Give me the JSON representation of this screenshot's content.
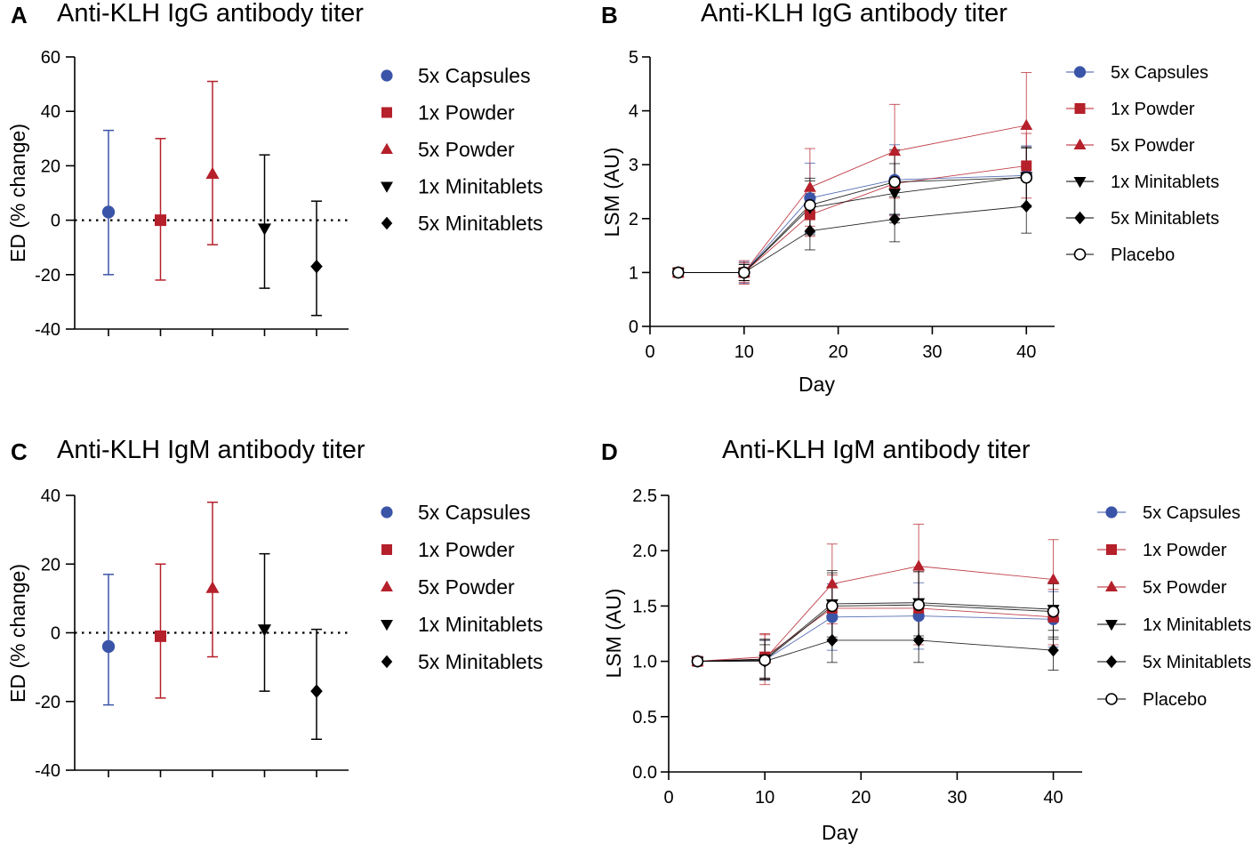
{
  "panels": {
    "A": {
      "letter": "A",
      "title": "Anti-KLH IgG antibody titer"
    },
    "B": {
      "letter": "B",
      "title": "Anti-KLH IgG antibody titer"
    },
    "C": {
      "letter": "C",
      "title": "Anti-KLH IgM antibody titer"
    },
    "D": {
      "letter": "D",
      "title": "Anti-KLH IgM antibody titer"
    }
  },
  "colors": {
    "blue": "#3a55a8",
    "red": "#b5202a",
    "black": "#000000",
    "grid": "#000000"
  },
  "chart_data": [
    {
      "id": "A",
      "type": "scatter",
      "title": "Anti-KLH IgG antibody titer",
      "ylabel": "ED (% change)",
      "xlabel": "",
      "ylim": [
        -40,
        60
      ],
      "yticks": [
        60,
        40,
        20,
        0,
        -20,
        -40
      ],
      "reference_line": 0,
      "series": [
        {
          "name": "5x Capsules",
          "marker": "circle",
          "color": "#3a55a8",
          "value": 3,
          "low": -20,
          "high": 33
        },
        {
          "name": "1x Powder",
          "marker": "square",
          "color": "#b5202a",
          "value": 0,
          "low": -22,
          "high": 30
        },
        {
          "name": "5x Powder",
          "marker": "triangle-up",
          "color": "#b5202a",
          "value": 17,
          "low": -9,
          "high": 51
        },
        {
          "name": "1x Minitablets",
          "marker": "triangle-down",
          "color": "#000000",
          "value": -3,
          "low": -25,
          "high": 24
        },
        {
          "name": "5x Minitablets",
          "marker": "diamond",
          "color": "#000000",
          "value": -17,
          "low": -35,
          "high": 7
        }
      ]
    },
    {
      "id": "B",
      "type": "line",
      "title": "Anti-KLH IgG antibody titer",
      "xlabel": "Day",
      "ylabel": "LSM (AU)",
      "xlim": [
        0,
        42
      ],
      "ylim": [
        0,
        5
      ],
      "xticks": [
        0,
        10,
        20,
        30,
        40
      ],
      "yticks": [
        0,
        1,
        2,
        3,
        4,
        5
      ],
      "x": [
        3,
        10,
        17,
        26,
        40
      ],
      "series": [
        {
          "name": "5x Capsules",
          "marker": "circle",
          "color": "#3a55a8",
          "values": [
            1,
            1,
            2.38,
            2.72,
            2.8
          ],
          "errors": [
            0.02,
            0.2,
            0.65,
            0.65,
            0.55
          ]
        },
        {
          "name": "1x Powder",
          "marker": "square",
          "color": "#b5202a",
          "values": [
            1,
            1,
            2.07,
            2.65,
            2.98
          ],
          "errors": [
            0.02,
            0.22,
            0.4,
            0.6,
            0.6
          ]
        },
        {
          "name": "5x Powder",
          "marker": "triangle-up",
          "color": "#b5202a",
          "values": [
            1,
            1,
            2.58,
            3.25,
            3.73
          ],
          "errors": [
            0.02,
            0.18,
            0.72,
            0.87,
            0.98
          ]
        },
        {
          "name": "1x Minitablets",
          "marker": "triangle-down",
          "color": "#000000",
          "values": [
            1,
            1,
            2.2,
            2.47,
            2.78
          ],
          "errors": [
            0.02,
            0.15,
            0.5,
            0.55,
            0.55
          ]
        },
        {
          "name": "5x Minitablets",
          "marker": "diamond",
          "color": "#000000",
          "values": [
            1,
            1,
            1.77,
            1.99,
            2.23
          ],
          "errors": [
            0.02,
            0.15,
            0.35,
            0.42,
            0.5
          ]
        },
        {
          "name": "Placebo",
          "marker": "circle-open",
          "color": "#000000",
          "values": [
            1,
            1,
            2.25,
            2.68,
            2.76
          ],
          "errors": [
            0.02,
            0.15,
            0.5,
            0.6,
            0.55
          ]
        }
      ]
    },
    {
      "id": "C",
      "type": "scatter",
      "title": "Anti-KLH IgM antibody titer",
      "ylabel": "ED (% change)",
      "xlabel": "",
      "ylim": [
        -40,
        40
      ],
      "yticks": [
        40,
        20,
        0,
        -20,
        -40
      ],
      "reference_line": 0,
      "series": [
        {
          "name": "5x Capsules",
          "marker": "circle",
          "color": "#3a55a8",
          "value": -4,
          "low": -21,
          "high": 17
        },
        {
          "name": "1x Powder",
          "marker": "square",
          "color": "#b5202a",
          "value": -1,
          "low": -19,
          "high": 20
        },
        {
          "name": "5x Powder",
          "marker": "triangle-up",
          "color": "#b5202a",
          "value": 13,
          "low": -7,
          "high": 38
        },
        {
          "name": "1x Minitablets",
          "marker": "triangle-down",
          "color": "#000000",
          "value": 1,
          "low": -17,
          "high": 23
        },
        {
          "name": "5x Minitablets",
          "marker": "diamond",
          "color": "#000000",
          "value": -17,
          "low": -31,
          "high": 1
        }
      ]
    },
    {
      "id": "D",
      "type": "line",
      "title": "Anti-KLH IgM antibody titer",
      "xlabel": "Day",
      "ylabel": "LSM (AU)",
      "xlim": [
        0,
        42
      ],
      "ylim": [
        0,
        2.5
      ],
      "xticks": [
        0,
        10,
        20,
        30,
        40
      ],
      "yticks": [
        0.0,
        0.5,
        1.0,
        1.5,
        2.0,
        2.5
      ],
      "ytick_labels": [
        "0.0",
        "0.5",
        "1.0",
        "1.5",
        "2.0",
        "2.5"
      ],
      "x": [
        3,
        10,
        17,
        26,
        40
      ],
      "series": [
        {
          "name": "5x Capsules",
          "marker": "circle",
          "color": "#3a55a8",
          "values": [
            1,
            1.01,
            1.4,
            1.41,
            1.38
          ],
          "errors": [
            0.02,
            0.18,
            0.3,
            0.3,
            0.25
          ]
        },
        {
          "name": "1x Powder",
          "marker": "square",
          "color": "#b5202a",
          "values": [
            1,
            1.04,
            1.48,
            1.48,
            1.4
          ],
          "errors": [
            0.02,
            0.2,
            0.3,
            0.33,
            0.25
          ]
        },
        {
          "name": "5x Powder",
          "marker": "triangle-up",
          "color": "#b5202a",
          "values": [
            1,
            1.02,
            1.7,
            1.86,
            1.74
          ],
          "errors": [
            0.02,
            0.23,
            0.36,
            0.38,
            0.36
          ]
        },
        {
          "name": "1x Minitablets",
          "marker": "triangle-down",
          "color": "#000000",
          "values": [
            1,
            1.02,
            1.52,
            1.53,
            1.47
          ],
          "errors": [
            0.02,
            0.18,
            0.3,
            0.3,
            0.25
          ]
        },
        {
          "name": "5x Minitablets",
          "marker": "diamond",
          "color": "#000000",
          "values": [
            1,
            1.0,
            1.19,
            1.19,
            1.1
          ],
          "errors": [
            0.02,
            0.15,
            0.2,
            0.2,
            0.18
          ]
        },
        {
          "name": "Placebo",
          "marker": "circle-open",
          "color": "#000000",
          "values": [
            1,
            1.01,
            1.5,
            1.51,
            1.45
          ],
          "errors": [
            0.02,
            0.18,
            0.3,
            0.3,
            0.25
          ]
        }
      ]
    }
  ]
}
